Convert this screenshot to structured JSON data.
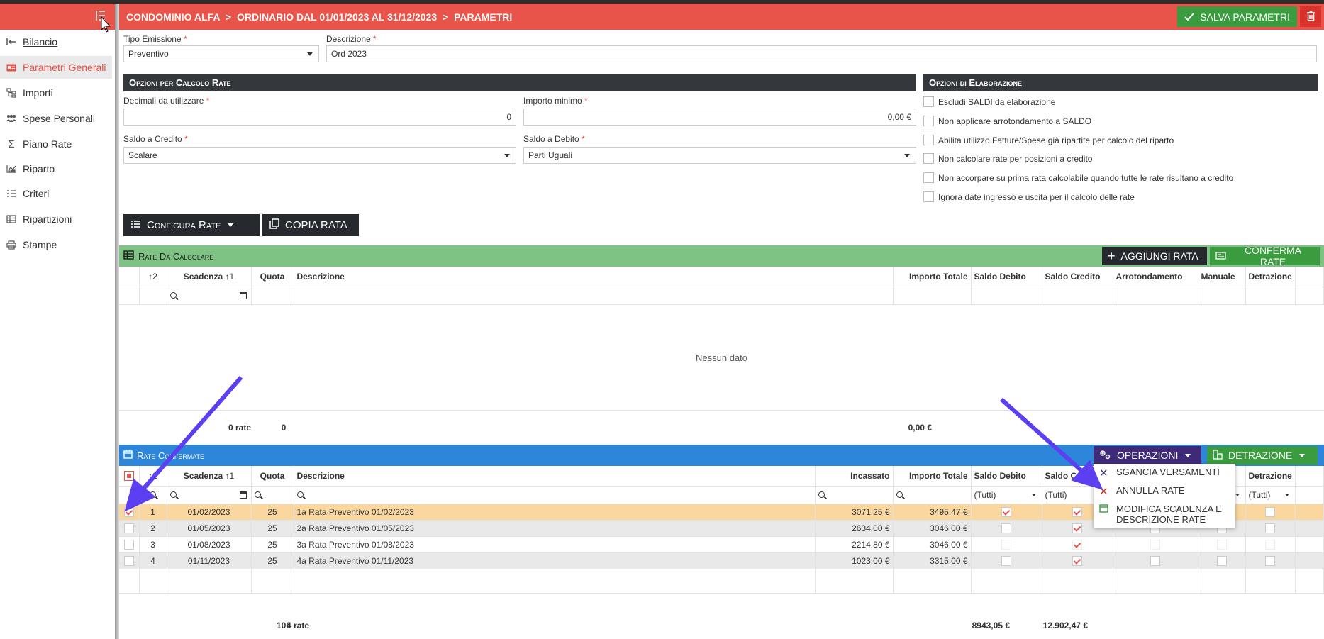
{
  "sidebar": {
    "items": [
      {
        "label": "Bilancio",
        "icon": "arrow-in-icon"
      },
      {
        "label": "Parametri Generali",
        "icon": "id-card-icon"
      },
      {
        "label": "Importi",
        "icon": "tree-icon"
      },
      {
        "label": "Spese Personali",
        "icon": "users-icon"
      },
      {
        "label": "Piano Rate",
        "icon": "sigma-icon"
      },
      {
        "label": "Riparto",
        "icon": "chart-icon"
      },
      {
        "label": "Criteri",
        "icon": "list-icon"
      },
      {
        "label": "Ripartizioni",
        "icon": "table-icon"
      },
      {
        "label": "Stampe",
        "icon": "printer-icon"
      }
    ]
  },
  "header": {
    "crumb1": "CONDOMINIO ALFA",
    "crumb2": "ORDINARIO DAL 01/01/2023 AL 31/12/2023",
    "crumb3": "PARAMETRI",
    "sep": ">",
    "save_label": "SALVA PARAMETRI"
  },
  "form": {
    "tipo_label": "Tipo Emissione",
    "tipo_value": "Preventivo",
    "descr_label": "Descrizione",
    "descr_value": "Ord 2023",
    "req": "*"
  },
  "calcolo": {
    "title": "Opzioni per Calcolo Rate",
    "decimali_label": "Decimali da utilizzare",
    "decimali_value": "0",
    "importo_min_label": "Importo minimo",
    "importo_min_value": "0,00 €",
    "saldo_credito_label": "Saldo a Credito",
    "saldo_credito_value": "Scalare",
    "saldo_debito_label": "Saldo a Debito",
    "saldo_debito_value": "Parti Uguali"
  },
  "elaborazione": {
    "title": "Opzioni di Elaborazione",
    "options": [
      "Escludi SALDI da elaborazione",
      "Non applicare arrotondamento a SALDO",
      "Abilita utilizzo Fatture/Spese già ripartite per calcolo del riparto",
      "Non calcolare rate per posizioni a credito",
      "Non accorpare su prima rata calcolabile quando tutte le rate risultano a credito",
      "Ignora date ingresso e uscita per il calcolo delle rate"
    ]
  },
  "toolbar": {
    "configura_label": "Configura Rate",
    "copia_label": "COPIA RATA"
  },
  "rate_da_calcolare": {
    "title": "Rate Da Calcolare",
    "aggiungi_label": "AGGIUNGI RATA",
    "conferma_label": "CONFERMA RATE",
    "sort2": "↑2",
    "columns": [
      "Scadenza",
      "Quota",
      "Descrizione",
      "Importo Totale",
      "Saldo Debito",
      "Saldo Credito",
      "Arrotondamento",
      "Manuale",
      "Detrazione"
    ],
    "sort1": "↑1",
    "empty": "Nessun dato",
    "footer_count": "0 rate",
    "footer_quota": "0",
    "footer_totale": "0,00 €"
  },
  "rate_confermate": {
    "title": "Rate Confermate",
    "operazioni_label": "OPERAZIONI",
    "detrazione_label": "DETRAZIONE",
    "sort2": "↑2",
    "sort1": "↑1",
    "columns": {
      "scadenza": "Scadenza",
      "quota": "Quota",
      "descrizione": "Descrizione",
      "incassato": "Incassato",
      "importo": "Importo Totale",
      "saldo_debito": "Saldo Debito",
      "saldo_credito": "Saldo Credito",
      "detrazione": "Detrazione"
    },
    "filter_all": "(Tutti)",
    "rows": [
      {
        "n": "1",
        "scadenza": "01/02/2023",
        "quota": "25",
        "descrizione": "1a Rata Preventivo 01/02/2023",
        "incassato": "3071,25 €",
        "importo": "3495,47 €"
      },
      {
        "n": "2",
        "scadenza": "01/05/2023",
        "quota": "25",
        "descrizione": "2a Rata Preventivo 01/05/2023",
        "incassato": "2634,00 €",
        "importo": "3046,00 €"
      },
      {
        "n": "3",
        "scadenza": "01/08/2023",
        "quota": "25",
        "descrizione": "3a Rata Preventivo 01/08/2023",
        "incassato": "2214,80 €",
        "importo": "3046,00 €"
      },
      {
        "n": "4",
        "scadenza": "01/11/2023",
        "quota": "25",
        "descrizione": "4a Rata Preventivo 01/11/2023",
        "incassato": "1023,00 €",
        "importo": "3315,00 €"
      }
    ],
    "footer_count": "4 rate",
    "footer_quota": "100",
    "footer_incassato": "8943,05 €",
    "footer_totale": "12.902,47 €"
  },
  "menu": {
    "items": [
      "SGANCIA VERSAMENTI",
      "ANNULLA RATE",
      "MODIFICA SCADENZA E DESCRIZIONE RATE"
    ]
  },
  "colors": {
    "brand_red": "#e8534a",
    "save_green": "#3a9c3e",
    "section_green": "#7ec384",
    "section_blue": "#2d86d9",
    "operazioni_purple": "#3f2a7a",
    "selected_row": "#f9d79e",
    "arrow": "#5b3ff0"
  }
}
